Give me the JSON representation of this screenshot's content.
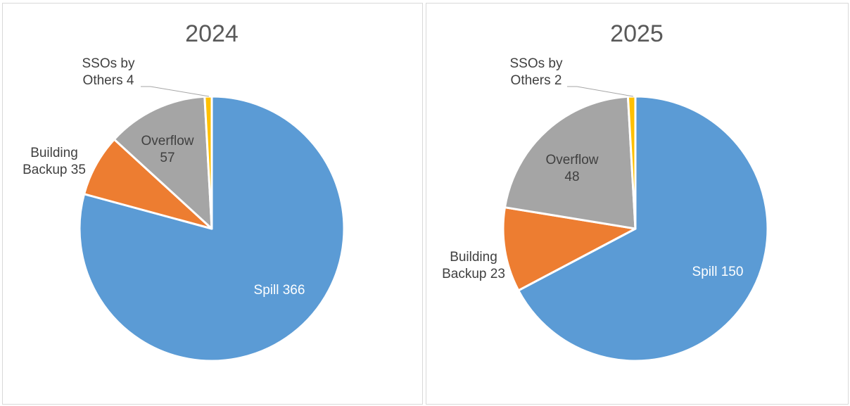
{
  "chart_data": [
    {
      "type": "pie",
      "title": "2024",
      "categories": [
        "Spill",
        "Building Backup",
        "Overflow",
        "SSOs by Others"
      ],
      "values": [
        366,
        35,
        57,
        4
      ],
      "colors": [
        "#5b9bd5",
        "#ed7d31",
        "#a5a5a5",
        "#ffc000"
      ]
    },
    {
      "type": "pie",
      "title": "2025",
      "categories": [
        "Spill",
        "Building Backup",
        "Overflow",
        "SSOs by Others"
      ],
      "values": [
        150,
        23,
        48,
        2
      ],
      "colors": [
        "#5b9bd5",
        "#ed7d31",
        "#a5a5a5",
        "#ffc000"
      ]
    }
  ]
}
